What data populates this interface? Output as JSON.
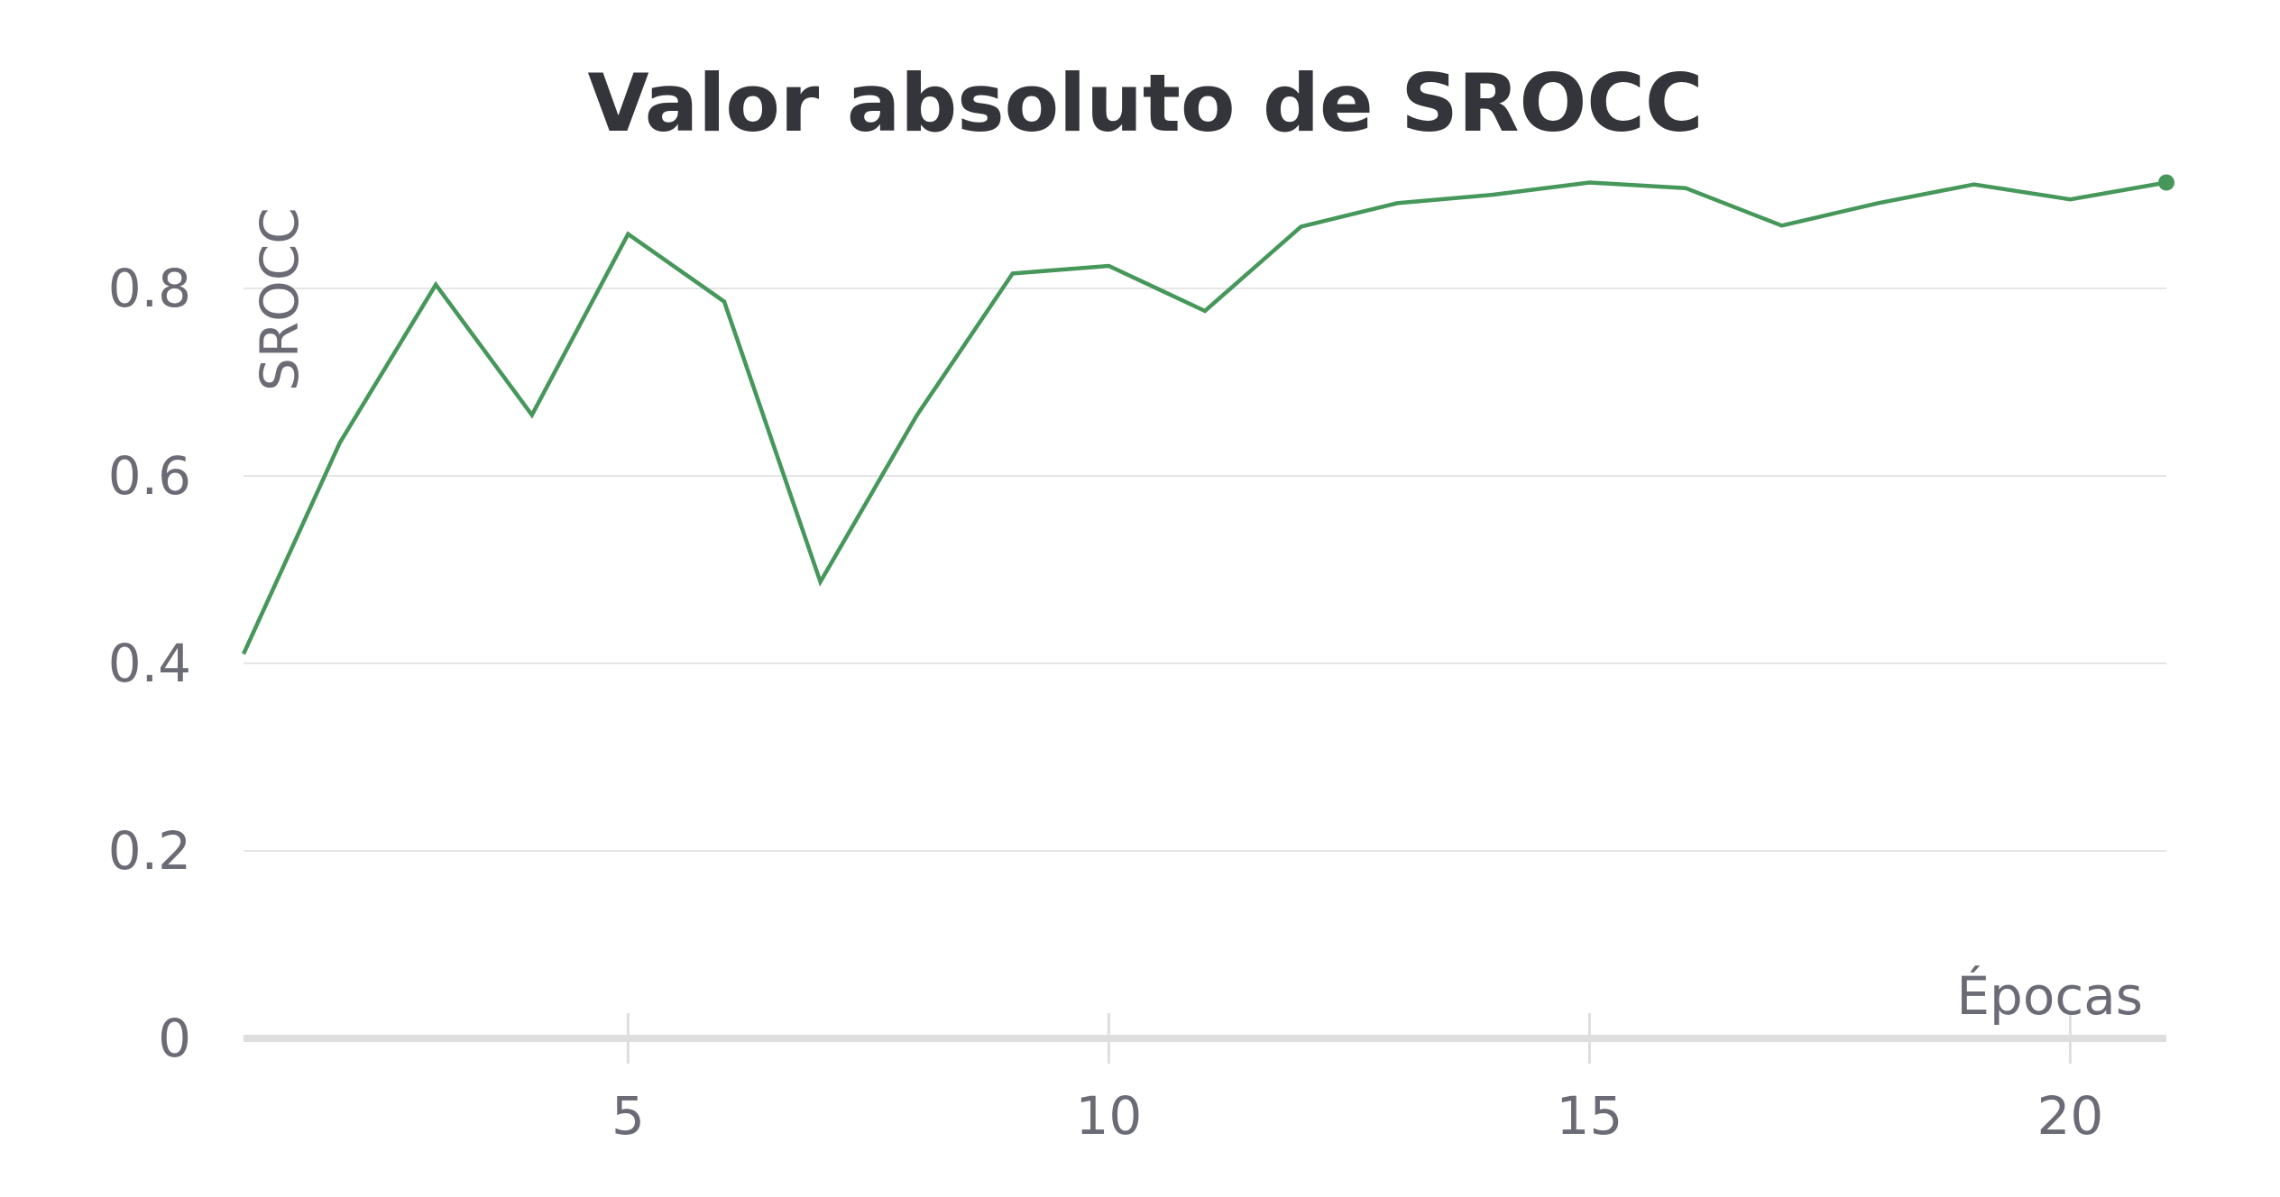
{
  "chart_data": {
    "type": "line",
    "title": "Valor absoluto de SROCC",
    "xlabel": "Épocas",
    "ylabel": "SROCC",
    "xlim": [
      1,
      21
    ],
    "ylim": [
      0,
      0.92
    ],
    "x_ticks": [
      5,
      10,
      15,
      20
    ],
    "y_ticks": [
      0,
      0.2,
      0.4,
      0.6,
      0.8
    ],
    "y_tick_labels": [
      "0",
      "0.2",
      "0.4",
      "0.6",
      "0.8"
    ],
    "x_tick_labels": [
      "5",
      "10",
      "15",
      "20"
    ],
    "grid": "horizontal",
    "legend": "none",
    "series": [
      {
        "color": "#45975a",
        "x": [
          1,
          2,
          3,
          4,
          5,
          6,
          7,
          8,
          9,
          10,
          11,
          12,
          13,
          14,
          15,
          16,
          17,
          18,
          19,
          20,
          21
        ],
        "y": [
          0.41,
          0.635,
          0.804,
          0.665,
          0.858,
          0.786,
          0.487,
          0.664,
          0.816,
          0.824,
          0.776,
          0.866,
          0.891,
          0.9,
          0.913,
          0.907,
          0.867,
          0.891,
          0.911,
          0.895,
          0.913
        ]
      }
    ]
  }
}
